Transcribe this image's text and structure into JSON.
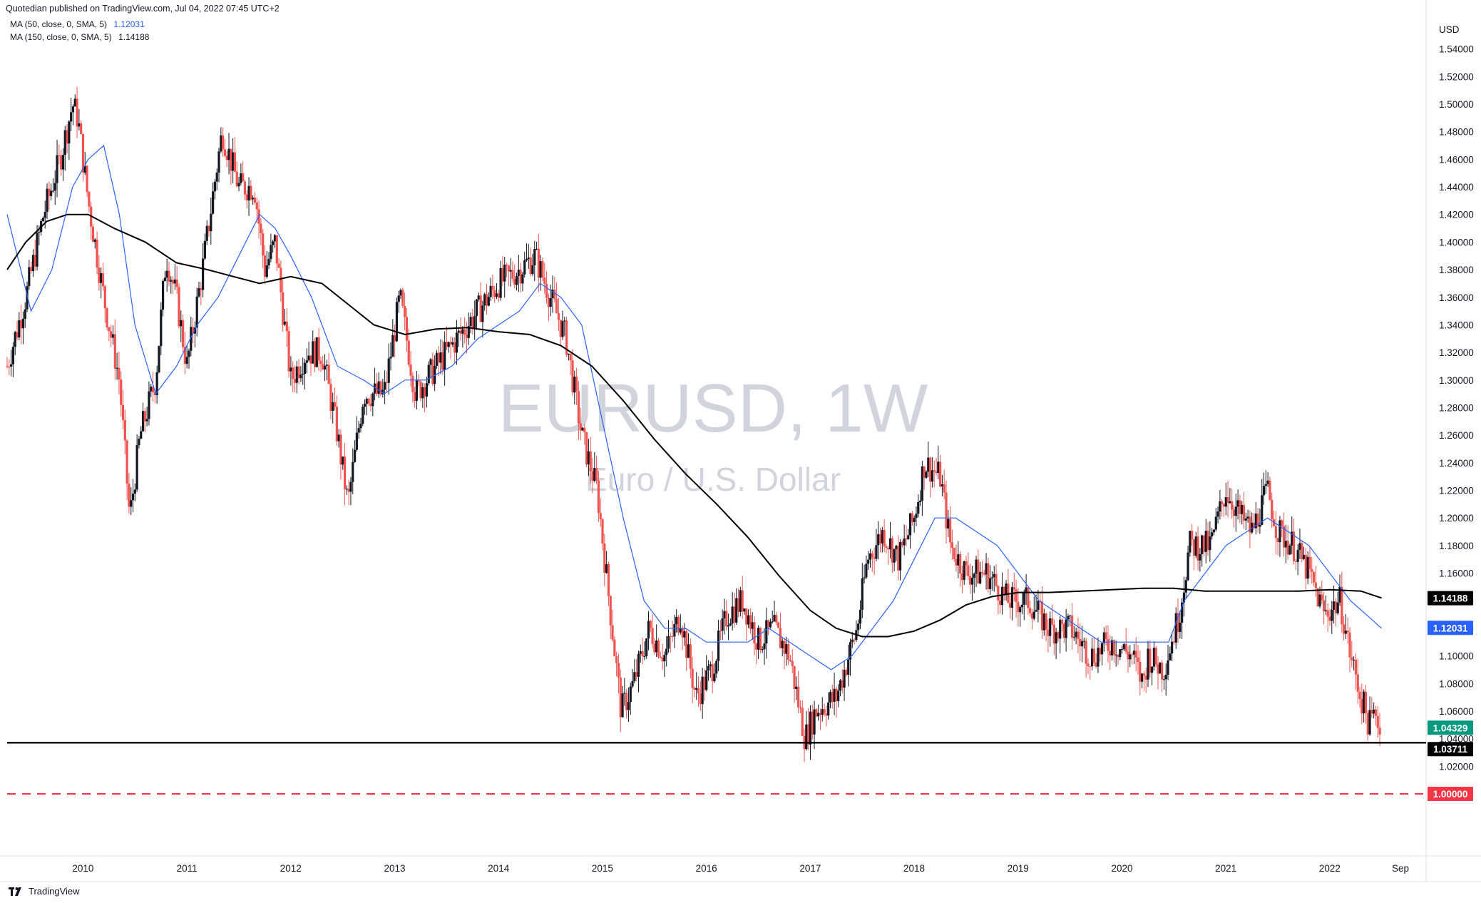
{
  "header": {
    "published": "Quotedian published on TradingView.com, Jul 04, 2022 07:45 UTC+2",
    "ma50_label": "MA (50, close, 0, SMA, 5)",
    "ma50_value": "1.12031",
    "ma150_label": "MA (150, close, 0, SMA, 5)",
    "ma150_value": "1.14188"
  },
  "footer": {
    "brand": "TradingView"
  },
  "colors": {
    "candle_up": "#131722",
    "candle_down": "#ef5350",
    "ma50": "#2962ff",
    "ma150": "#000000",
    "last_price_tag": "#089981",
    "support_line": "#000000",
    "parity_line": "#f23645"
  },
  "chart_data": {
    "type": "candlestick",
    "symbol": "EURUSD, 1W",
    "description": "Euro / U.S. Dollar",
    "currency": "USD",
    "ylim": [
      0.955,
      1.56
    ],
    "y_ticks": [
      "1.02000",
      "1.04000",
      "1.06000",
      "1.08000",
      "1.10000",
      "1.12000",
      "1.14000",
      "1.16000",
      "1.18000",
      "1.20000",
      "1.22000",
      "1.24000",
      "1.26000",
      "1.28000",
      "1.30000",
      "1.32000",
      "1.34000",
      "1.36000",
      "1.38000",
      "1.40000",
      "1.42000",
      "1.44000",
      "1.46000",
      "1.48000",
      "1.50000",
      "1.52000",
      "1.54000"
    ],
    "x_ticks": [
      "2010",
      "2011",
      "2012",
      "2013",
      "2014",
      "2015",
      "2016",
      "2017",
      "2018",
      "2019",
      "2020",
      "2021",
      "2022",
      "Sep"
    ],
    "x_range": [
      2009.27,
      2022.79
    ],
    "price_path": [
      [
        2009.27,
        1.31
      ],
      [
        2009.45,
        1.36
      ],
      [
        2009.62,
        1.42
      ],
      [
        2009.78,
        1.46
      ],
      [
        2009.9,
        1.5
      ],
      [
        2009.95,
        1.49
      ],
      [
        2010.05,
        1.43
      ],
      [
        2010.2,
        1.36
      ],
      [
        2010.35,
        1.3
      ],
      [
        2010.42,
        1.23
      ],
      [
        2010.45,
        1.2
      ],
      [
        2010.55,
        1.26
      ],
      [
        2010.7,
        1.3
      ],
      [
        2010.8,
        1.39
      ],
      [
        2010.9,
        1.36
      ],
      [
        2011.0,
        1.31
      ],
      [
        2011.15,
        1.38
      ],
      [
        2011.28,
        1.45
      ],
      [
        2011.34,
        1.48
      ],
      [
        2011.5,
        1.44
      ],
      [
        2011.65,
        1.44
      ],
      [
        2011.75,
        1.38
      ],
      [
        2011.85,
        1.4
      ],
      [
        2012.0,
        1.3
      ],
      [
        2012.15,
        1.32
      ],
      [
        2012.3,
        1.32
      ],
      [
        2012.45,
        1.26
      ],
      [
        2012.55,
        1.21
      ],
      [
        2012.7,
        1.29
      ],
      [
        2012.9,
        1.29
      ],
      [
        2013.05,
        1.36
      ],
      [
        2013.2,
        1.29
      ],
      [
        2013.4,
        1.31
      ],
      [
        2013.6,
        1.33
      ],
      [
        2013.8,
        1.35
      ],
      [
        2014.0,
        1.37
      ],
      [
        2014.2,
        1.38
      ],
      [
        2014.35,
        1.39
      ],
      [
        2014.5,
        1.36
      ],
      [
        2014.65,
        1.33
      ],
      [
        2014.8,
        1.26
      ],
      [
        2014.95,
        1.22
      ],
      [
        2015.05,
        1.15
      ],
      [
        2015.18,
        1.06
      ],
      [
        2015.3,
        1.08
      ],
      [
        2015.45,
        1.12
      ],
      [
        2015.6,
        1.1
      ],
      [
        2015.75,
        1.13
      ],
      [
        2015.9,
        1.07
      ],
      [
        2016.05,
        1.09
      ],
      [
        2016.2,
        1.13
      ],
      [
        2016.35,
        1.14
      ],
      [
        2016.5,
        1.11
      ],
      [
        2016.65,
        1.12
      ],
      [
        2016.8,
        1.1
      ],
      [
        2016.95,
        1.04
      ],
      [
        2017.05,
        1.06
      ],
      [
        2017.25,
        1.07
      ],
      [
        2017.45,
        1.12
      ],
      [
        2017.55,
        1.17
      ],
      [
        2017.7,
        1.19
      ],
      [
        2017.85,
        1.17
      ],
      [
        2018.0,
        1.2
      ],
      [
        2018.1,
        1.24
      ],
      [
        2018.25,
        1.23
      ],
      [
        2018.35,
        1.18
      ],
      [
        2018.5,
        1.16
      ],
      [
        2018.7,
        1.16
      ],
      [
        2018.9,
        1.14
      ],
      [
        2019.1,
        1.14
      ],
      [
        2019.3,
        1.12
      ],
      [
        2019.5,
        1.12
      ],
      [
        2019.7,
        1.1
      ],
      [
        2019.9,
        1.11
      ],
      [
        2020.1,
        1.1
      ],
      [
        2020.2,
        1.08
      ],
      [
        2020.25,
        1.1
      ],
      [
        2020.4,
        1.09
      ],
      [
        2020.55,
        1.13
      ],
      [
        2020.65,
        1.18
      ],
      [
        2020.85,
        1.18
      ],
      [
        2021.0,
        1.22
      ],
      [
        2021.15,
        1.2
      ],
      [
        2021.25,
        1.19
      ],
      [
        2021.4,
        1.22
      ],
      [
        2021.5,
        1.19
      ],
      [
        2021.65,
        1.18
      ],
      [
        2021.8,
        1.16
      ],
      [
        2021.95,
        1.13
      ],
      [
        2022.1,
        1.14
      ],
      [
        2022.2,
        1.1
      ],
      [
        2022.3,
        1.07
      ],
      [
        2022.38,
        1.05
      ],
      [
        2022.45,
        1.06
      ],
      [
        2022.5,
        1.043
      ]
    ],
    "ma50_path": [
      [
        2009.27,
        1.42
      ],
      [
        2009.5,
        1.35
      ],
      [
        2009.7,
        1.38
      ],
      [
        2009.9,
        1.44
      ],
      [
        2010.05,
        1.46
      ],
      [
        2010.2,
        1.47
      ],
      [
        2010.35,
        1.42
      ],
      [
        2010.5,
        1.34
      ],
      [
        2010.7,
        1.29
      ],
      [
        2010.9,
        1.31
      ],
      [
        2011.1,
        1.34
      ],
      [
        2011.3,
        1.36
      ],
      [
        2011.5,
        1.39
      ],
      [
        2011.7,
        1.42
      ],
      [
        2011.85,
        1.41
      ],
      [
        2012.0,
        1.39
      ],
      [
        2012.2,
        1.36
      ],
      [
        2012.45,
        1.31
      ],
      [
        2012.7,
        1.3
      ],
      [
        2012.9,
        1.29
      ],
      [
        2013.1,
        1.3
      ],
      [
        2013.3,
        1.3
      ],
      [
        2013.55,
        1.31
      ],
      [
        2013.8,
        1.33
      ],
      [
        2014.0,
        1.34
      ],
      [
        2014.2,
        1.35
      ],
      [
        2014.4,
        1.37
      ],
      [
        2014.6,
        1.36
      ],
      [
        2014.8,
        1.34
      ],
      [
        2015.0,
        1.27
      ],
      [
        2015.2,
        1.2
      ],
      [
        2015.4,
        1.14
      ],
      [
        2015.6,
        1.12
      ],
      [
        2015.8,
        1.12
      ],
      [
        2016.0,
        1.11
      ],
      [
        2016.2,
        1.11
      ],
      [
        2016.4,
        1.11
      ],
      [
        2016.6,
        1.12
      ],
      [
        2016.8,
        1.11
      ],
      [
        2017.0,
        1.1
      ],
      [
        2017.2,
        1.09
      ],
      [
        2017.4,
        1.1
      ],
      [
        2017.6,
        1.12
      ],
      [
        2017.8,
        1.14
      ],
      [
        2018.0,
        1.17
      ],
      [
        2018.2,
        1.2
      ],
      [
        2018.4,
        1.2
      ],
      [
        2018.6,
        1.19
      ],
      [
        2018.8,
        1.18
      ],
      [
        2019.0,
        1.16
      ],
      [
        2019.2,
        1.14
      ],
      [
        2019.4,
        1.13
      ],
      [
        2019.6,
        1.12
      ],
      [
        2019.8,
        1.11
      ],
      [
        2020.0,
        1.11
      ],
      [
        2020.2,
        1.11
      ],
      [
        2020.45,
        1.11
      ],
      [
        2020.6,
        1.14
      ],
      [
        2020.8,
        1.16
      ],
      [
        2021.0,
        1.18
      ],
      [
        2021.2,
        1.19
      ],
      [
        2021.4,
        1.2
      ],
      [
        2021.6,
        1.19
      ],
      [
        2021.8,
        1.18
      ],
      [
        2022.0,
        1.16
      ],
      [
        2022.2,
        1.14
      ],
      [
        2022.35,
        1.13
      ],
      [
        2022.5,
        1.12
      ]
    ],
    "ma150_path": [
      [
        2009.27,
        1.38
      ],
      [
        2009.45,
        1.4
      ],
      [
        2009.65,
        1.415
      ],
      [
        2009.85,
        1.42
      ],
      [
        2010.05,
        1.42
      ],
      [
        2010.3,
        1.41
      ],
      [
        2010.6,
        1.4
      ],
      [
        2010.9,
        1.385
      ],
      [
        2011.2,
        1.38
      ],
      [
        2011.45,
        1.375
      ],
      [
        2011.7,
        1.37
      ],
      [
        2012.0,
        1.375
      ],
      [
        2012.3,
        1.37
      ],
      [
        2012.55,
        1.355
      ],
      [
        2012.8,
        1.34
      ],
      [
        2013.1,
        1.333
      ],
      [
        2013.4,
        1.337
      ],
      [
        2013.7,
        1.338
      ],
      [
        2014.0,
        1.335
      ],
      [
        2014.3,
        1.333
      ],
      [
        2014.6,
        1.325
      ],
      [
        2014.9,
        1.31
      ],
      [
        2015.2,
        1.285
      ],
      [
        2015.5,
        1.257
      ],
      [
        2015.8,
        1.232
      ],
      [
        2016.1,
        1.21
      ],
      [
        2016.4,
        1.186
      ],
      [
        2016.7,
        1.158
      ],
      [
        2017.0,
        1.133
      ],
      [
        2017.25,
        1.12
      ],
      [
        2017.5,
        1.114
      ],
      [
        2017.75,
        1.114
      ],
      [
        2018.0,
        1.118
      ],
      [
        2018.25,
        1.126
      ],
      [
        2018.5,
        1.137
      ],
      [
        2018.75,
        1.143
      ],
      [
        2019.0,
        1.146
      ],
      [
        2019.3,
        1.146
      ],
      [
        2019.6,
        1.147
      ],
      [
        2019.9,
        1.148
      ],
      [
        2020.2,
        1.149
      ],
      [
        2020.5,
        1.149
      ],
      [
        2020.8,
        1.147
      ],
      [
        2021.1,
        1.147
      ],
      [
        2021.4,
        1.147
      ],
      [
        2021.7,
        1.147
      ],
      [
        2022.0,
        1.148
      ],
      [
        2022.3,
        1.147
      ],
      [
        2022.5,
        1.142
      ]
    ],
    "horizontal_levels": [
      {
        "value": 1.03711,
        "label": "1.03711",
        "style": "solid"
      },
      {
        "value": 1.0,
        "label": "1.00000",
        "style": "dashed"
      }
    ],
    "price_tags": [
      {
        "value": 1.14188,
        "label": "1.14188",
        "color": "#000000"
      },
      {
        "value": 1.12031,
        "label": "1.12031",
        "color": "#2962ff"
      },
      {
        "value": 1.04329,
        "label": "1.04329",
        "color": "#089981"
      },
      {
        "value": 1.03711,
        "label": "1.03711",
        "color": "#000000"
      },
      {
        "value": 1.0,
        "label": "1.00000",
        "color": "#f23645"
      }
    ]
  }
}
